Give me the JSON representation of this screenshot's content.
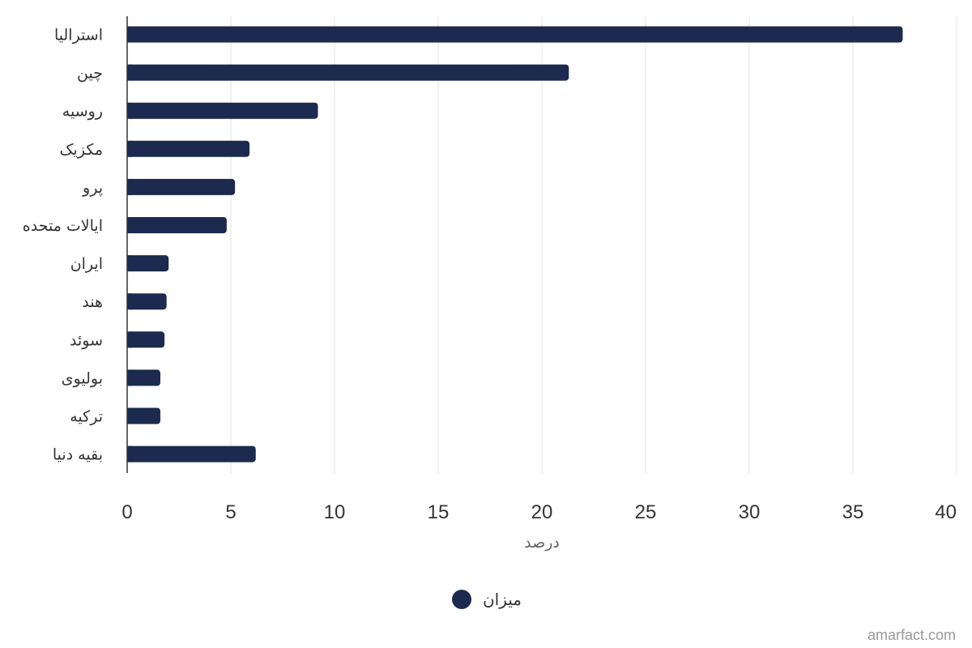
{
  "chart_data": {
    "type": "bar",
    "orientation": "horizontal",
    "categories": [
      "استرالیا",
      "چین",
      "روسیه",
      "مکزیک",
      "پرو",
      "ایالات متحده",
      "ایران",
      "هند",
      "سوئد",
      "بولیوی",
      "ترکیه",
      "بقیه دنیا"
    ],
    "series": [
      {
        "name": "میزان",
        "color": "#1b2a4e",
        "values": [
          37.4,
          21.3,
          9.2,
          5.9,
          5.2,
          4.8,
          2.0,
          1.9,
          1.8,
          1.6,
          1.6,
          6.2
        ]
      }
    ],
    "xlabel": "درصد",
    "ylabel": "",
    "xlim": [
      0,
      40
    ],
    "xticks": [
      0,
      5,
      10,
      15,
      20,
      25,
      30,
      35,
      40
    ],
    "grid": true,
    "legend_position": "bottom-center"
  },
  "credit": "amarfact.com",
  "colors": {
    "bar": "#1b2a4e",
    "grid": "#e3e3e3",
    "axis": "#333333"
  }
}
